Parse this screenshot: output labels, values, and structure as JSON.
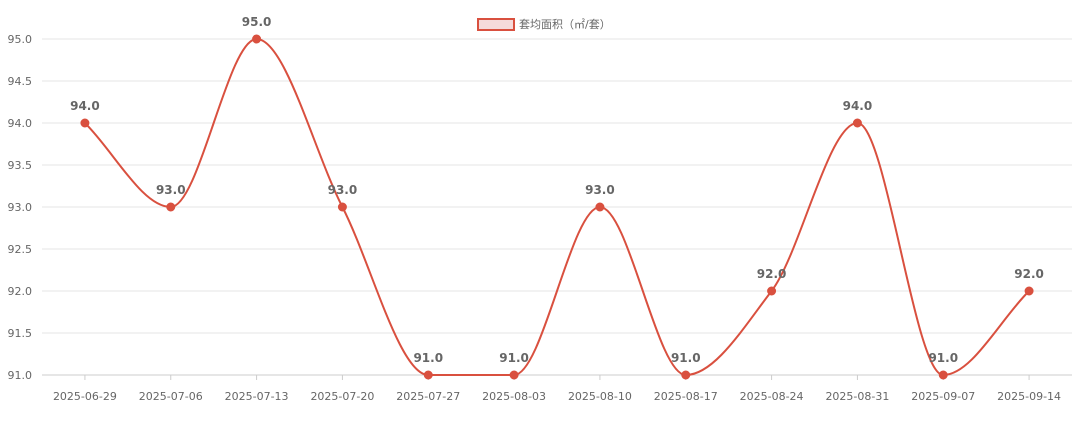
{
  "chart_data": {
    "type": "line",
    "categories": [
      "2025-06-29",
      "2025-07-06",
      "2025-07-13",
      "2025-07-20",
      "2025-07-27",
      "2025-08-03",
      "2025-08-10",
      "2025-08-17",
      "2025-08-24",
      "2025-08-31",
      "2025-09-07",
      "2025-09-14"
    ],
    "series": [
      {
        "name": "套均面积（㎡/套）",
        "values": [
          94.0,
          93.0,
          95.0,
          93.0,
          91.0,
          91.0,
          93.0,
          91.0,
          92.0,
          94.0,
          91.0,
          92.0
        ],
        "color": "#d9503f"
      }
    ],
    "ylim": [
      91.0,
      95.0
    ],
    "yticks": [
      "91.0",
      "91.5",
      "92.0",
      "92.5",
      "93.0",
      "93.5",
      "94.0",
      "94.5",
      "95.0"
    ],
    "data_labels": [
      "94.0",
      "93.0",
      "95.0",
      "93.0",
      "91.0",
      "91.0",
      "93.0",
      "91.0",
      "92.0",
      "94.0",
      "91.0",
      "92.0"
    ],
    "legend_position": "top-center",
    "grid": true,
    "smooth": true
  }
}
